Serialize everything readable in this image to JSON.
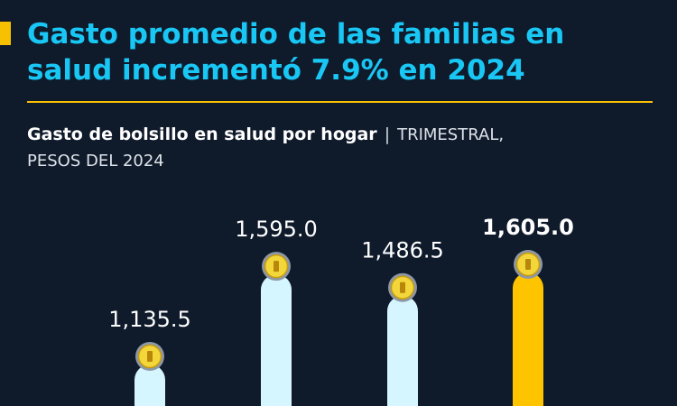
{
  "header": {
    "headline_line1": "Gasto promedio de las familias en",
    "headline_line2": "salud incrementó 7.9% en 2024"
  },
  "subtitle": {
    "bold": "Gasto de bolsillo en salud por hogar",
    "separator": "|",
    "rest_line1": "TRIMESTRAL,",
    "rest_line2": "PESOS DEL 2024"
  },
  "colors": {
    "background": "#0f1a2b",
    "headline": "#19c7f5",
    "accent": "#f7c000",
    "bar_default": "#d6f6ff",
    "bar_highlight": "#ffc400"
  },
  "chart_data": {
    "type": "bar",
    "title": "Gasto de bolsillo en salud por hogar",
    "values": [
      1135.5,
      1595.0,
      1486.5,
      1605.0
    ],
    "labels": [
      "1,135.5",
      "1,595.0",
      "1,486.5",
      "1,605.0"
    ],
    "highlight_index": 3,
    "marker_icon": "coin-icon"
  }
}
